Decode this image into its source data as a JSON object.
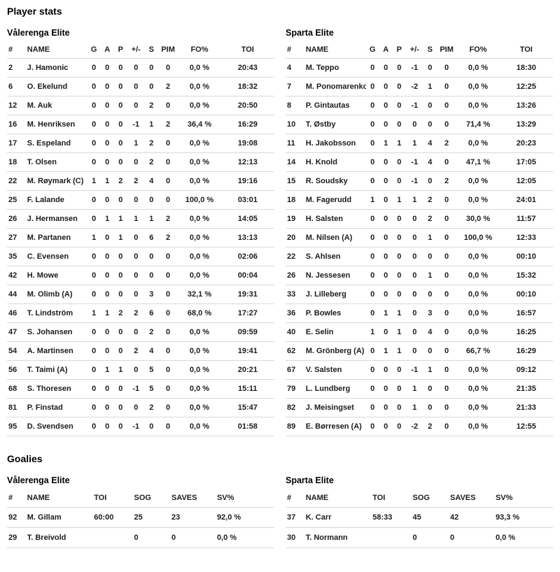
{
  "page": {
    "title": "Player stats",
    "goalies_title": "Goalies"
  },
  "colors": {
    "background": "#ffffff",
    "text": "#1c1c1c",
    "heading": "#000000",
    "divider": "#d8d8d8"
  },
  "player_tables": [
    {
      "team": "Vålerenga Elite",
      "columns": [
        "#",
        "NAME",
        "G",
        "A",
        "P",
        "+/-",
        "S",
        "PIM",
        "FO%",
        "TOI"
      ],
      "column_keys": [
        "number",
        "name",
        "goals",
        "assists",
        "points",
        "plus-minus",
        "shots",
        "pim",
        "fo-pct",
        "toi"
      ],
      "rows": [
        [
          "2",
          "J. Hamonic",
          "0",
          "0",
          "0",
          "0",
          "0",
          "0",
          "0,0 %",
          "20:43"
        ],
        [
          "6",
          "O. Ekelund",
          "0",
          "0",
          "0",
          "0",
          "0",
          "2",
          "0,0 %",
          "18:32"
        ],
        [
          "12",
          "M. Auk",
          "0",
          "0",
          "0",
          "0",
          "2",
          "0",
          "0,0 %",
          "20:50"
        ],
        [
          "16",
          "M. Henriksen",
          "0",
          "0",
          "0",
          "-1",
          "1",
          "2",
          "36,4 %",
          "16:29"
        ],
        [
          "17",
          "S. Espeland",
          "0",
          "0",
          "0",
          "1",
          "2",
          "0",
          "0,0 %",
          "19:08"
        ],
        [
          "18",
          "T. Olsen",
          "0",
          "0",
          "0",
          "0",
          "2",
          "0",
          "0,0 %",
          "12:13"
        ],
        [
          "22",
          "M. Røymark (C)",
          "1",
          "1",
          "2",
          "2",
          "4",
          "0",
          "0,0 %",
          "19:16"
        ],
        [
          "25",
          "F. Lalande",
          "0",
          "0",
          "0",
          "0",
          "0",
          "0",
          "100,0 %",
          "03:01"
        ],
        [
          "26",
          "J. Hermansen",
          "0",
          "1",
          "1",
          "1",
          "1",
          "2",
          "0,0 %",
          "14:05"
        ],
        [
          "27",
          "M. Partanen",
          "1",
          "0",
          "1",
          "0",
          "6",
          "2",
          "0,0 %",
          "13:13"
        ],
        [
          "35",
          "C. Evensen",
          "0",
          "0",
          "0",
          "0",
          "0",
          "0",
          "0,0 %",
          "02:06"
        ],
        [
          "42",
          "H. Mowe",
          "0",
          "0",
          "0",
          "0",
          "0",
          "0",
          "0,0 %",
          "00:04"
        ],
        [
          "44",
          "M. Olimb (A)",
          "0",
          "0",
          "0",
          "0",
          "3",
          "0",
          "32,1 %",
          "19:31"
        ],
        [
          "46",
          "T. Lindström",
          "1",
          "1",
          "2",
          "2",
          "6",
          "0",
          "68,0 %",
          "17:27"
        ],
        [
          "47",
          "S. Johansen",
          "0",
          "0",
          "0",
          "0",
          "2",
          "0",
          "0,0 %",
          "09:59"
        ],
        [
          "54",
          "A. Martinsen",
          "0",
          "0",
          "0",
          "2",
          "4",
          "0",
          "0,0 %",
          "19:41"
        ],
        [
          "56",
          "T. Taimi (A)",
          "0",
          "1",
          "1",
          "0",
          "5",
          "0",
          "0,0 %",
          "20:21"
        ],
        [
          "68",
          "S. Thoresen",
          "0",
          "0",
          "0",
          "-1",
          "5",
          "0",
          "0,0 %",
          "15:11"
        ],
        [
          "81",
          "P. Finstad",
          "0",
          "0",
          "0",
          "0",
          "2",
          "0",
          "0,0 %",
          "15:47"
        ],
        [
          "95",
          "D. Svendsen",
          "0",
          "0",
          "0",
          "-1",
          "0",
          "0",
          "0,0 %",
          "01:58"
        ]
      ]
    },
    {
      "team": "Sparta Elite",
      "columns": [
        "#",
        "NAME",
        "G",
        "A",
        "P",
        "+/-",
        "S",
        "PIM",
        "FO%",
        "TOI"
      ],
      "column_keys": [
        "number",
        "name",
        "goals",
        "assists",
        "points",
        "plus-minus",
        "shots",
        "pim",
        "fo-pct",
        "toi"
      ],
      "rows": [
        [
          "4",
          "M. Teppo",
          "0",
          "0",
          "0",
          "-1",
          "0",
          "0",
          "0,0 %",
          "18:30"
        ],
        [
          "7",
          "M. Ponomarenko",
          "0",
          "0",
          "0",
          "-2",
          "1",
          "0",
          "0,0 %",
          "12:25"
        ],
        [
          "8",
          "P. Gintautas",
          "0",
          "0",
          "0",
          "-1",
          "0",
          "0",
          "0,0 %",
          "13:26"
        ],
        [
          "10",
          "T. Østby",
          "0",
          "0",
          "0",
          "0",
          "0",
          "0",
          "71,4 %",
          "13:29"
        ],
        [
          "11",
          "H. Jakobsson",
          "0",
          "1",
          "1",
          "1",
          "4",
          "2",
          "0,0 %",
          "20:23"
        ],
        [
          "14",
          "H. Knold",
          "0",
          "0",
          "0",
          "-1",
          "4",
          "0",
          "47,1 %",
          "17:05"
        ],
        [
          "15",
          "R. Soudsky",
          "0",
          "0",
          "0",
          "-1",
          "0",
          "2",
          "0,0 %",
          "12:05"
        ],
        [
          "18",
          "M. Fagerudd",
          "1",
          "0",
          "1",
          "1",
          "2",
          "0",
          "0,0 %",
          "24:01"
        ],
        [
          "19",
          "H. Salsten",
          "0",
          "0",
          "0",
          "0",
          "2",
          "0",
          "30,0 %",
          "11:57"
        ],
        [
          "20",
          "M. Nilsen (A)",
          "0",
          "0",
          "0",
          "0",
          "1",
          "0",
          "100,0 %",
          "12:33"
        ],
        [
          "22",
          "S. Ahlsen",
          "0",
          "0",
          "0",
          "0",
          "0",
          "0",
          "0,0 %",
          "00:10"
        ],
        [
          "26",
          "N. Jessesen",
          "0",
          "0",
          "0",
          "0",
          "1",
          "0",
          "0,0 %",
          "15:32"
        ],
        [
          "33",
          "J. Lilleberg",
          "0",
          "0",
          "0",
          "0",
          "0",
          "0",
          "0,0 %",
          "00:10"
        ],
        [
          "36",
          "P. Bowles",
          "0",
          "1",
          "1",
          "0",
          "3",
          "0",
          "0,0 %",
          "16:57"
        ],
        [
          "40",
          "E. Selin",
          "1",
          "0",
          "1",
          "0",
          "4",
          "0",
          "0,0 %",
          "16:25"
        ],
        [
          "62",
          "M. Grönberg (A)",
          "0",
          "1",
          "1",
          "0",
          "0",
          "0",
          "66,7 %",
          "16:29"
        ],
        [
          "67",
          "V. Salsten",
          "0",
          "0",
          "0",
          "-1",
          "1",
          "0",
          "0,0 %",
          "09:12"
        ],
        [
          "79",
          "L. Lundberg",
          "0",
          "0",
          "0",
          "1",
          "0",
          "0",
          "0,0 %",
          "21:35"
        ],
        [
          "82",
          "J. Meisingset",
          "0",
          "0",
          "0",
          "1",
          "0",
          "0",
          "0,0 %",
          "21:33"
        ],
        [
          "89",
          "E. Børresen (A)",
          "0",
          "0",
          "0",
          "-2",
          "2",
          "0",
          "0,0 %",
          "12:55"
        ]
      ]
    }
  ],
  "goalie_tables": [
    {
      "team": "Vålerenga Elite",
      "columns": [
        "#",
        "NAME",
        "TOI",
        "SOG",
        "SAVES",
        "SV%"
      ],
      "column_keys": [
        "number",
        "name",
        "toi",
        "sog",
        "saves",
        "sv-pct"
      ],
      "rows": [
        [
          "92",
          "M. Gillam",
          "60:00",
          "25",
          "23",
          "92,0 %"
        ],
        [
          "29",
          "T. Breivold",
          "",
          "0",
          "0",
          "0,0 %"
        ]
      ]
    },
    {
      "team": "Sparta Elite",
      "columns": [
        "#",
        "NAME",
        "TOI",
        "SOG",
        "SAVES",
        "SV%"
      ],
      "column_keys": [
        "number",
        "name",
        "toi",
        "sog",
        "saves",
        "sv-pct"
      ],
      "rows": [
        [
          "37",
          "K. Carr",
          "58:33",
          "45",
          "42",
          "93,3 %"
        ],
        [
          "30",
          "T. Normann",
          "",
          "0",
          "0",
          "0,0 %"
        ]
      ]
    }
  ]
}
